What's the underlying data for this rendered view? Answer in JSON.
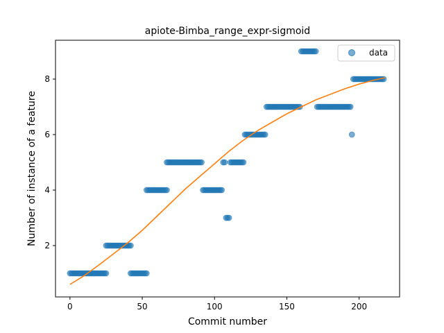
{
  "chart_data": {
    "type": "scatter",
    "title": "apiote-Bimba_range_expr-sigmoid",
    "xlabel": "Commit number",
    "ylabel": "Number of instance of a feature",
    "xlim": [
      -10,
      228
    ],
    "ylim": [
      0.15,
      9.4
    ],
    "x_ticks": [
      0,
      50,
      100,
      150,
      200
    ],
    "y_ticks": [
      2,
      4,
      6,
      8
    ],
    "grid": false,
    "legend": {
      "placement": "top-right",
      "entries": [
        "data"
      ]
    },
    "colors": {
      "data": "#1f77b4",
      "fit": "#ff7f0e"
    },
    "series": [
      {
        "name": "data",
        "kind": "scatter",
        "segments": [
          {
            "x_start": 0,
            "x_end": 25,
            "y": 1
          },
          {
            "x_start": 25,
            "x_end": 42,
            "y": 2
          },
          {
            "x_start": 42,
            "x_end": 53,
            "y": 1
          },
          {
            "x_start": 53,
            "x_end": 67,
            "y": 4
          },
          {
            "x_start": 67,
            "x_end": 91,
            "y": 5
          },
          {
            "x_start": 92,
            "x_end": 105,
            "y": 4
          },
          {
            "x_start": 106,
            "x_end": 107,
            "y": 5
          },
          {
            "x_start": 108,
            "x_end": 110,
            "y": 3
          },
          {
            "x_start": 111,
            "x_end": 120,
            "y": 5
          },
          {
            "x_start": 121,
            "x_end": 135,
            "y": 6
          },
          {
            "x_start": 136,
            "x_end": 159,
            "y": 7
          },
          {
            "x_start": 160,
            "x_end": 170,
            "y": 9
          },
          {
            "x_start": 171,
            "x_end": 194,
            "y": 7
          },
          {
            "x_start": 195,
            "x_end": 195,
            "y": 6
          },
          {
            "x_start": 196,
            "x_end": 217,
            "y": 8
          }
        ]
      },
      {
        "name": "",
        "kind": "line",
        "x": [
          0,
          10,
          20,
          30,
          40,
          50,
          60,
          70,
          80,
          90,
          100,
          110,
          120,
          130,
          140,
          150,
          160,
          170,
          180,
          190,
          200,
          210,
          218
        ],
        "y": [
          0.6,
          0.92,
          1.3,
          1.7,
          2.1,
          2.55,
          3.05,
          3.55,
          4.05,
          4.5,
          4.95,
          5.4,
          5.8,
          6.15,
          6.45,
          6.75,
          7.0,
          7.25,
          7.45,
          7.65,
          7.82,
          7.96,
          8.05
        ]
      }
    ]
  }
}
